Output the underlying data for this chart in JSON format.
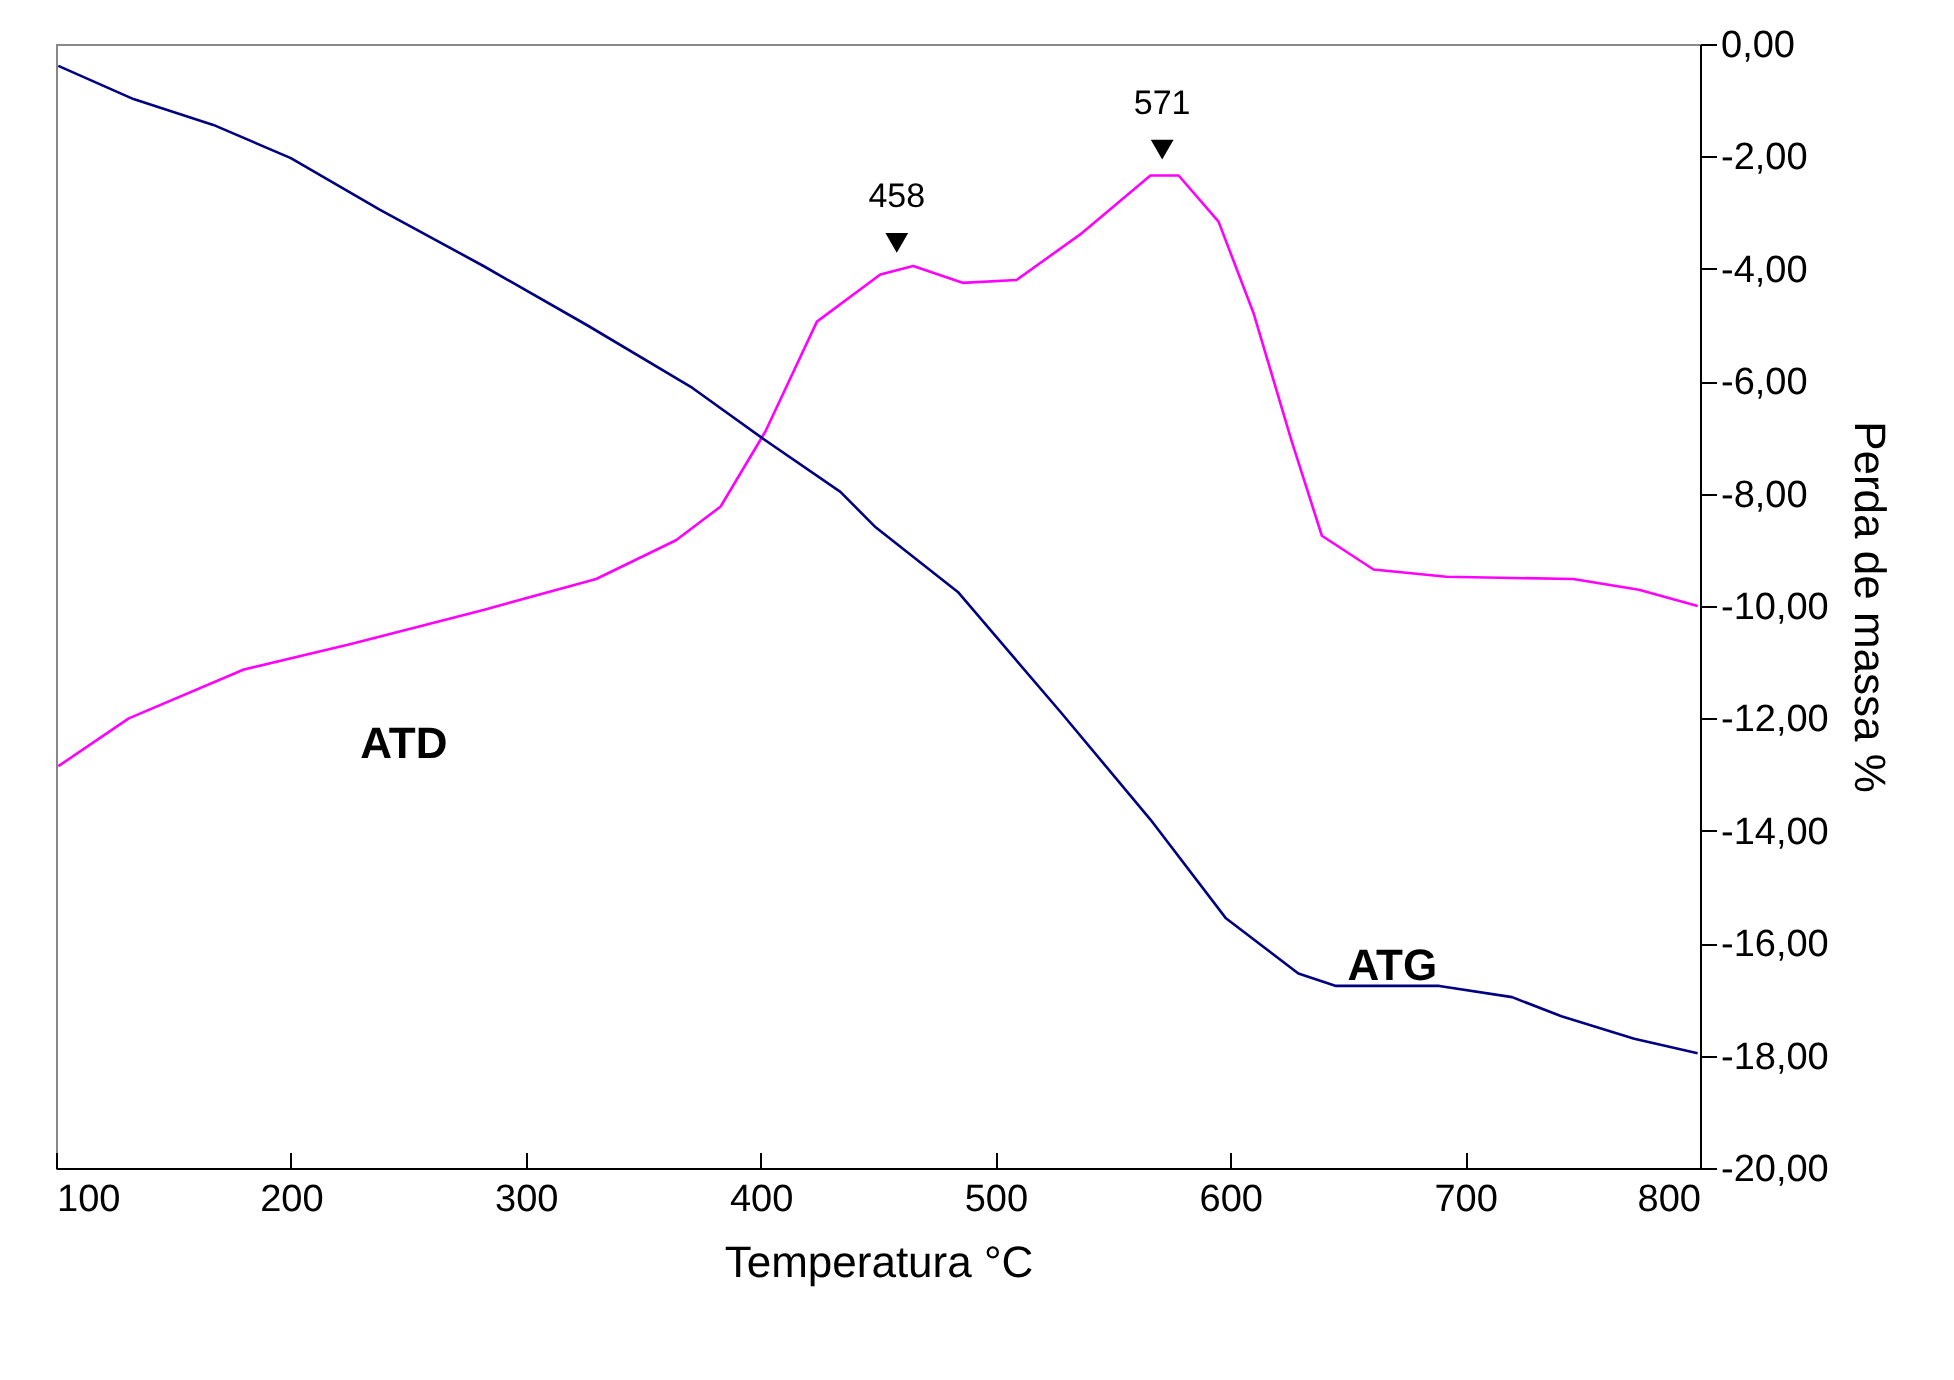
{
  "chart_data": {
    "type": "line",
    "xlabel": "Temperatura °C",
    "ylabel": "Perda de massa %",
    "xlim": [
      100,
      800
    ],
    "xticks": [
      100,
      200,
      300,
      400,
      500,
      600,
      700,
      800
    ],
    "ylim": [
      -20,
      0
    ],
    "yticks": [
      {
        "value": 0,
        "label": "0,00"
      },
      {
        "value": -2,
        "label": "-2,00"
      },
      {
        "value": -4,
        "label": "-4,00"
      },
      {
        "value": -6,
        "label": "-6,00"
      },
      {
        "value": -8,
        "label": "-8,00"
      },
      {
        "value": -10,
        "label": "-10,00"
      },
      {
        "value": -12,
        "label": "-12,00"
      },
      {
        "value": -14,
        "label": "-14,00"
      },
      {
        "value": -16,
        "label": "-16,00"
      },
      {
        "value": -18,
        "label": "-18,00"
      },
      {
        "value": -20,
        "label": "-20,00"
      }
    ],
    "grid": false,
    "legend": false,
    "series": [
      {
        "name": "ATD",
        "color": "#ff00ff",
        "x": [
          101,
          131,
          180,
          226,
          282,
          330,
          364,
          383,
          402,
          424,
          451,
          465,
          486,
          509,
          537,
          566,
          578,
          595,
          610,
          626,
          639,
          661,
          692,
          746,
          774,
          799
        ],
        "values": [
          -12.85,
          -12.0,
          -11.13,
          -10.67,
          -10.07,
          -9.52,
          -8.83,
          -8.23,
          -6.9,
          -4.94,
          -4.1,
          -3.95,
          -4.25,
          -4.2,
          -3.36,
          -2.34,
          -2.34,
          -3.16,
          -4.8,
          -7.05,
          -8.75,
          -9.35,
          -9.48,
          -9.52,
          -9.71,
          -10.0
        ]
      },
      {
        "name": "ATG",
        "color": "#000080",
        "x": [
          101,
          133,
          167,
          200,
          238,
          282,
          326,
          371,
          402,
          434,
          449,
          484,
          528,
          566,
          598,
          629,
          645,
          689,
          720,
          741,
          772,
          799
        ],
        "values": [
          -0.39,
          -0.98,
          -1.44,
          -2.03,
          -2.95,
          -3.95,
          -5.0,
          -6.12,
          -7.05,
          -7.97,
          -8.6,
          -9.75,
          -11.9,
          -13.8,
          -15.55,
          -16.54,
          -16.76,
          -16.76,
          -16.96,
          -17.3,
          -17.7,
          -17.96
        ]
      }
    ],
    "annotations": [
      {
        "text": "458",
        "x": 458,
        "y": -4.0
      },
      {
        "text": "571",
        "x": 571,
        "y": -2.34
      }
    ]
  }
}
